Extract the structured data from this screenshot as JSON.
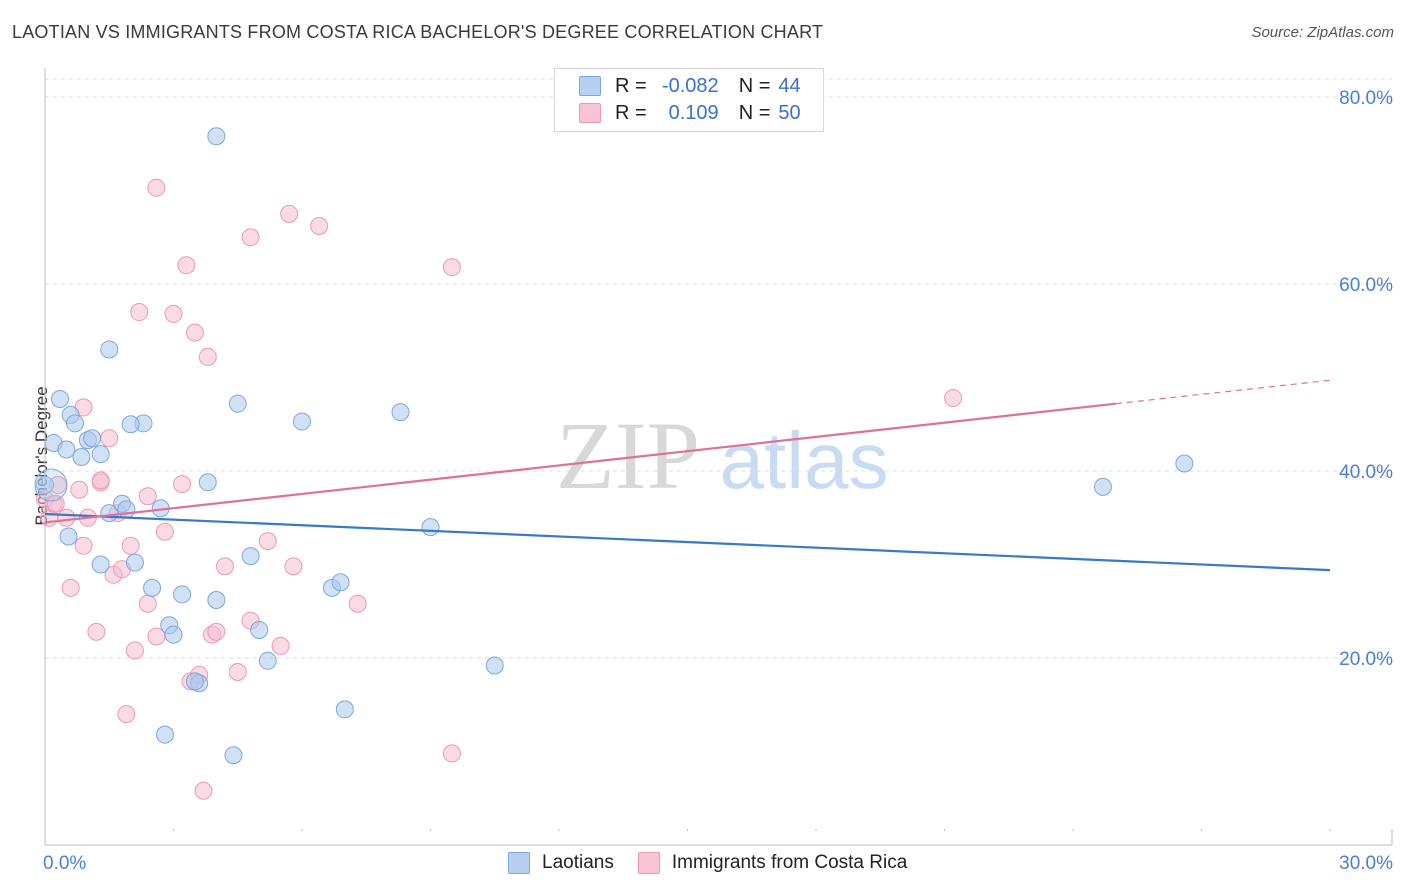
{
  "title": "LAOTIAN VS IMMIGRANTS FROM COSTA RICA BACHELOR'S DEGREE CORRELATION CHART",
  "source": "Source: ZipAtlas.com",
  "watermark": {
    "zip": "ZIP",
    "atlas": "atlas"
  },
  "colors": {
    "blue_fill": "#a9c8ef",
    "blue_stroke": "#7fa7dc",
    "blue_line": "#3a78c9",
    "pink_fill": "#f6bccd",
    "pink_stroke": "#eb9ab4",
    "pink_line": "#e07096",
    "axis_text": "#4a7fd0",
    "grid": "#dcdcdc"
  },
  "stats": {
    "rows": [
      {
        "r_label": "R =",
        "r_value": "-0.082",
        "n_label": "N =",
        "n_value": "44",
        "color": "#b7d0f2"
      },
      {
        "r_label": "R =",
        "r_value": "0.109",
        "n_label": "N =",
        "n_value": "50",
        "color": "#f8c4d3"
      }
    ]
  },
  "legend": {
    "items": [
      {
        "label": "Laotians",
        "color": "#b7d0f2"
      },
      {
        "label": "Immigrants from Costa Rica",
        "color": "#f8c4d3"
      }
    ]
  },
  "chart_data": {
    "type": "scatter",
    "title": "LAOTIAN VS IMMIGRANTS FROM COSTA RICA BACHELOR'S DEGREE CORRELATION CHART",
    "xlabel": "",
    "ylabel": "Bachelor's Degree",
    "xlim": [
      0,
      30
    ],
    "ylim": [
      0,
      80
    ],
    "x_tick_labels": [
      "0.0%",
      "30.0%"
    ],
    "y_ticks": [
      20,
      40,
      60,
      80
    ],
    "y_tick_labels": [
      "20.0%",
      "40.0%",
      "60.0%",
      "80.0%"
    ],
    "series": [
      {
        "name": "Laotians",
        "points": [
          [
            0.0,
            38.5
          ],
          [
            0.2,
            43.0
          ],
          [
            0.35,
            47.7
          ],
          [
            0.5,
            42.3
          ],
          [
            0.6,
            46.0
          ],
          [
            0.7,
            45.1
          ],
          [
            0.85,
            41.5
          ],
          [
            1.0,
            43.3
          ],
          [
            1.1,
            43.5
          ],
          [
            1.3,
            41.8
          ],
          [
            1.5,
            35.5
          ],
          [
            1.8,
            36.5
          ],
          [
            1.9,
            35.9
          ],
          [
            2.1,
            30.2
          ],
          [
            2.3,
            45.1
          ],
          [
            2.5,
            27.5
          ],
          [
            2.7,
            36.0
          ],
          [
            2.9,
            23.5
          ],
          [
            3.0,
            22.5
          ],
          [
            3.2,
            26.8
          ],
          [
            3.6,
            17.3
          ],
          [
            3.8,
            38.8
          ],
          [
            4.0,
            26.2
          ],
          [
            4.4,
            9.6
          ],
          [
            4.8,
            30.9
          ],
          [
            5.0,
            23.0
          ],
          [
            5.2,
            19.7
          ],
          [
            6.7,
            27.5
          ],
          [
            6.9,
            28.1
          ],
          [
            7.0,
            14.5
          ],
          [
            9.0,
            34.0
          ],
          [
            10.5,
            19.2
          ],
          [
            1.5,
            53.0
          ],
          [
            4.0,
            75.8
          ],
          [
            4.5,
            47.2
          ],
          [
            6.0,
            45.3
          ],
          [
            8.3,
            46.3
          ],
          [
            0.55,
            33.0
          ],
          [
            1.3,
            30.0
          ],
          [
            2.0,
            45.0
          ],
          [
            2.8,
            11.8
          ],
          [
            3.5,
            17.5
          ],
          [
            24.7,
            38.3
          ],
          [
            26.6,
            40.8
          ]
        ]
      },
      {
        "name": "Immigrants from Costa Rica",
        "points": [
          [
            0.0,
            37.0
          ],
          [
            0.1,
            35.0
          ],
          [
            0.2,
            36.5
          ],
          [
            0.3,
            38.5
          ],
          [
            0.5,
            35.0
          ],
          [
            0.6,
            27.5
          ],
          [
            0.8,
            38.0
          ],
          [
            0.9,
            32.0
          ],
          [
            1.0,
            35.0
          ],
          [
            1.2,
            22.8
          ],
          [
            1.3,
            38.8
          ],
          [
            1.5,
            43.5
          ],
          [
            1.6,
            28.9
          ],
          [
            1.8,
            29.5
          ],
          [
            1.9,
            14.0
          ],
          [
            2.0,
            32.0
          ],
          [
            2.1,
            20.8
          ],
          [
            2.2,
            57.0
          ],
          [
            2.4,
            25.8
          ],
          [
            2.6,
            22.3
          ],
          [
            2.8,
            33.5
          ],
          [
            3.0,
            56.8
          ],
          [
            3.2,
            38.6
          ],
          [
            3.4,
            17.5
          ],
          [
            3.5,
            54.8
          ],
          [
            3.6,
            18.2
          ],
          [
            3.7,
            5.8
          ],
          [
            3.9,
            22.5
          ],
          [
            4.0,
            22.8
          ],
          [
            3.8,
            52.2
          ],
          [
            4.2,
            29.8
          ],
          [
            4.5,
            18.5
          ],
          [
            4.8,
            24.0
          ],
          [
            5.2,
            32.5
          ],
          [
            5.5,
            21.3
          ],
          [
            5.8,
            29.8
          ],
          [
            7.3,
            25.8
          ],
          [
            9.5,
            9.8
          ],
          [
            3.3,
            62.0
          ],
          [
            2.6,
            70.3
          ],
          [
            4.8,
            65.0
          ],
          [
            5.7,
            67.5
          ],
          [
            6.4,
            66.2
          ],
          [
            9.5,
            61.8
          ],
          [
            21.2,
            47.8
          ],
          [
            0.9,
            46.8
          ],
          [
            1.3,
            39.0
          ],
          [
            2.4,
            37.3
          ],
          [
            0.25,
            36.5
          ],
          [
            1.7,
            35.5
          ]
        ]
      }
    ],
    "trend_lines": [
      {
        "name": "Laotians",
        "x": [
          0,
          30
        ],
        "y": [
          35.4,
          29.4
        ]
      },
      {
        "name": "Immigrants from Costa Rica",
        "x": [
          0,
          25
        ],
        "y": [
          34.5,
          47.2
        ],
        "dashed_extension_x": [
          25,
          30
        ],
        "dashed_extension_y": [
          47.2,
          49.7
        ]
      }
    ]
  }
}
